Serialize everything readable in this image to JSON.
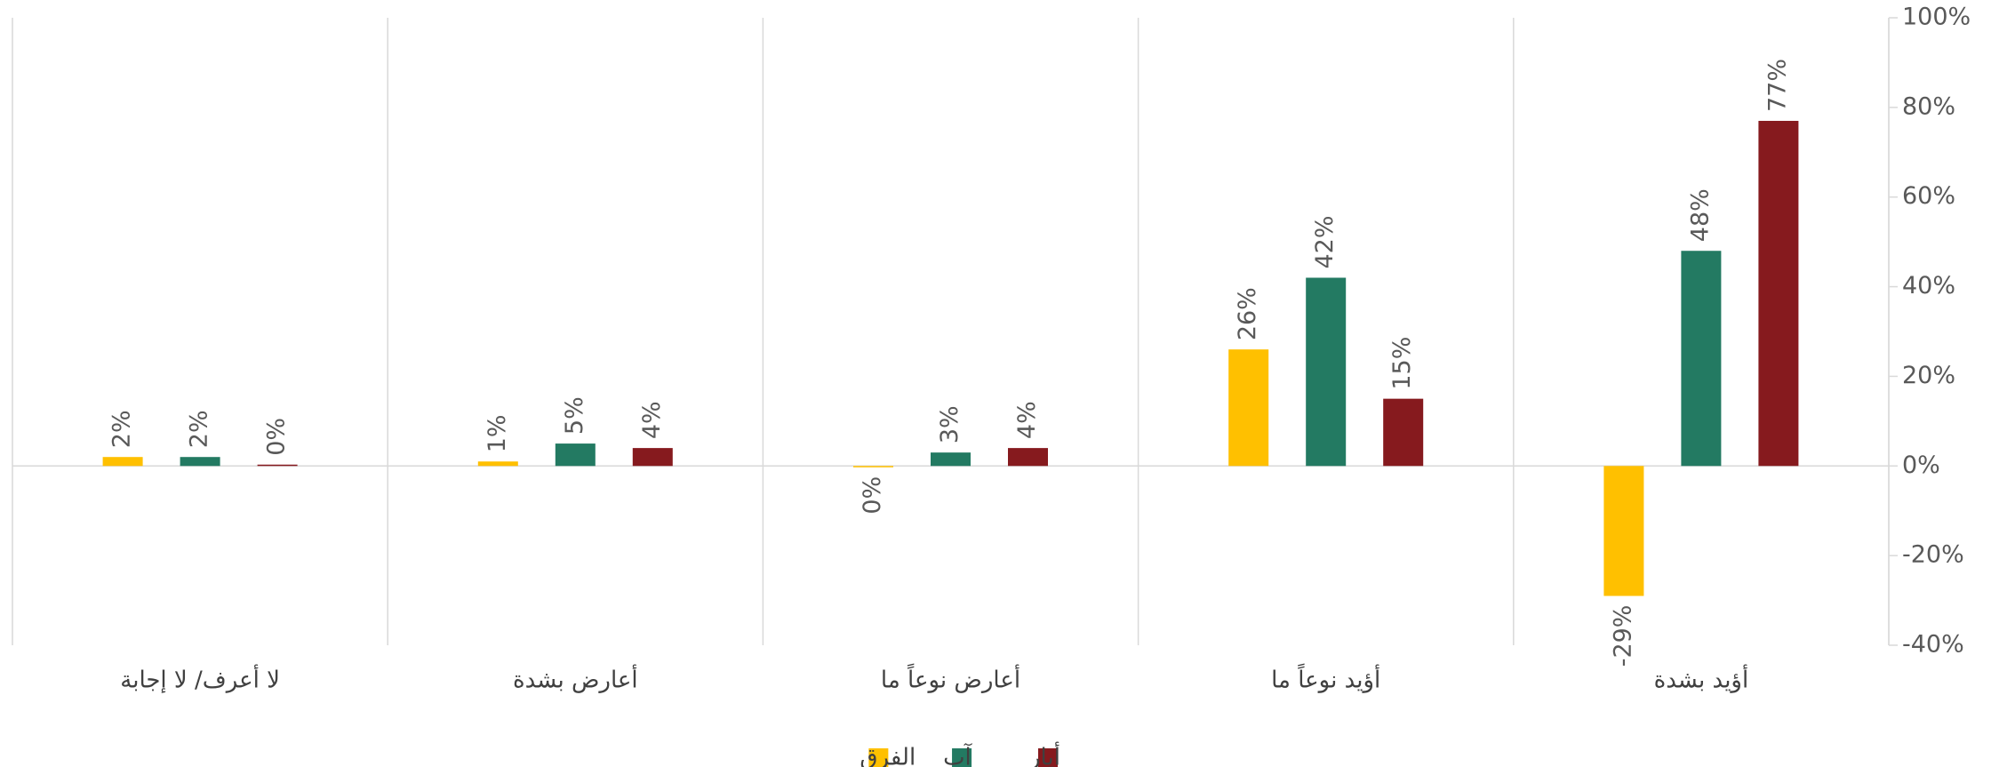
{
  "chart_data": {
    "type": "bar",
    "categories": [
      "أؤيد بشدة",
      "أؤيد نوعاً ما",
      "أعارض نوعاً ما",
      "أعارض بشدة",
      "لا أعرف/ لا إجابة"
    ],
    "series": [
      {
        "name": "أيار",
        "color": "#861a1e",
        "values": [
          77,
          15,
          4,
          4,
          0.3
        ],
        "value_labels": [
          "77%",
          "15%",
          "4%",
          "4%",
          "0%"
        ]
      },
      {
        "name": "آب",
        "color": "#237a62",
        "values": [
          48,
          42,
          3,
          5,
          2
        ],
        "value_labels": [
          "48%",
          "42%",
          "3%",
          "5%",
          "2%"
        ]
      },
      {
        "name": "الفرق",
        "color": "#ffc000",
        "values": [
          -29,
          26,
          -0.3,
          1,
          2
        ],
        "value_labels": [
          "-29%",
          "26%",
          "0%",
          "1%",
          "2%"
        ]
      }
    ],
    "ylim": [
      -40,
      100
    ],
    "yticks": [
      {
        "value": -40,
        "label": "-40%"
      },
      {
        "value": -20,
        "label": "-20%"
      },
      {
        "value": 0,
        "label": "0%"
      },
      {
        "value": 20,
        "label": "20%"
      },
      {
        "value": 40,
        "label": "40%"
      },
      {
        "value": 60,
        "label": "60%"
      },
      {
        "value": 80,
        "label": "80%"
      },
      {
        "value": 100,
        "label": "100%"
      }
    ],
    "grid": false
  }
}
